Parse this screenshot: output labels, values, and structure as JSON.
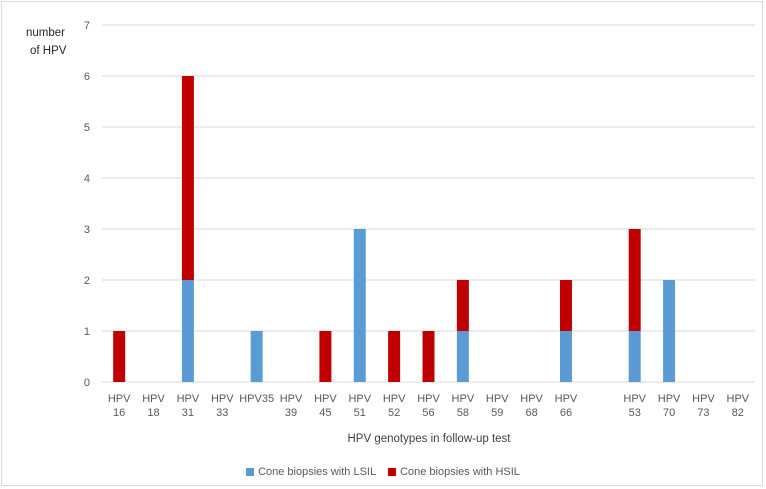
{
  "chart_data": {
    "type": "bar",
    "stacked": true,
    "title": "",
    "ylabel_lines": [
      "number",
      "of  HPV"
    ],
    "xlabel": "HPV genotypes  in follow-up test",
    "ylim": [
      0,
      7
    ],
    "yticks": [
      0,
      1,
      2,
      3,
      4,
      5,
      6,
      7
    ],
    "grid": true,
    "legend_position": "bottom",
    "categories": [
      [
        "HPV",
        "16"
      ],
      [
        "HPV",
        "18"
      ],
      [
        "HPV",
        "31"
      ],
      [
        "HPV",
        "33"
      ],
      [
        "HPV35",
        ""
      ],
      [
        "HPV",
        "39"
      ],
      [
        "HPV",
        "45"
      ],
      [
        "HPV",
        "51"
      ],
      [
        "HPV",
        "52"
      ],
      [
        "HPV",
        "56"
      ],
      [
        "HPV",
        "58"
      ],
      [
        "HPV",
        "59"
      ],
      [
        "HPV",
        "68"
      ],
      [
        "HPV",
        "66"
      ],
      [
        "",
        ""
      ],
      [
        "HPV",
        "53"
      ],
      [
        "HPV",
        "70"
      ],
      [
        "HPV",
        "73"
      ],
      [
        "HPV",
        "82"
      ]
    ],
    "series": [
      {
        "name": "Cone biopsies with LSIL",
        "color": "#5b9bd5",
        "values": [
          0,
          0,
          2,
          0,
          1,
          0,
          0,
          3,
          0,
          0,
          1,
          0,
          0,
          1,
          0,
          1,
          2,
          0,
          0
        ]
      },
      {
        "name": "Cone biopsies with HSIL",
        "color": "#c00000",
        "values": [
          1,
          0,
          4,
          0,
          0,
          0,
          1,
          0,
          1,
          1,
          1,
          0,
          0,
          1,
          0,
          2,
          0,
          0,
          0
        ]
      }
    ]
  }
}
